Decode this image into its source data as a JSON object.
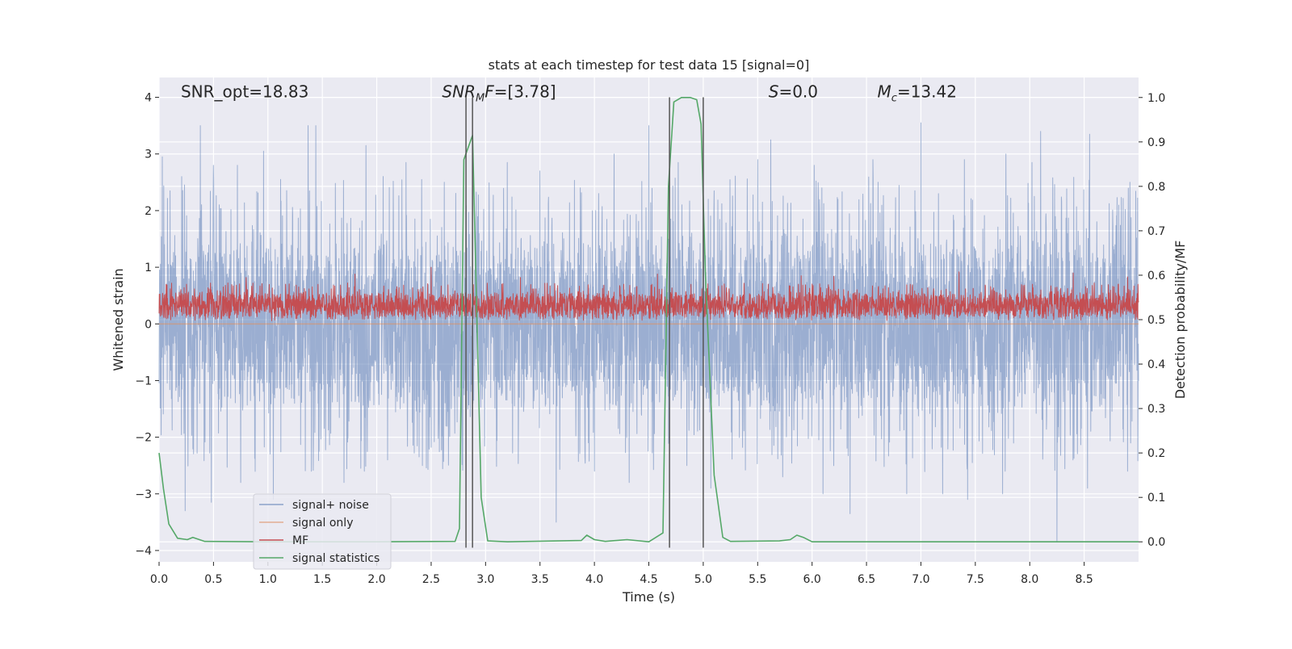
{
  "chart_data": {
    "type": "line",
    "title": "stats at each timestep for test data 15 [signal=0]",
    "xlabel": "Time (s)",
    "ylabel_left": "Whitened strain",
    "ylabel_right": "Detection probability/MF",
    "xlim": [
      0.0,
      9.0
    ],
    "ylim_left": [
      -4.2,
      4.35
    ],
    "ylim_right": [
      -0.045,
      1.045
    ],
    "xticks": [
      0.0,
      0.5,
      1.0,
      1.5,
      2.0,
      2.5,
      3.0,
      3.5,
      4.0,
      4.5,
      5.0,
      5.5,
      6.0,
      6.5,
      7.0,
      7.5,
      8.0,
      8.5
    ],
    "xtick_labels": [
      "0.0",
      "0.5",
      "1.0",
      "1.5",
      "2.0",
      "2.5",
      "3.0",
      "3.5",
      "4.0",
      "4.5",
      "5.0",
      "5.5",
      "6.0",
      "6.5",
      "7.0",
      "7.5",
      "8.0",
      "8.5"
    ],
    "yticks_left": [
      -4,
      -3,
      -2,
      -1,
      0,
      1,
      2,
      3,
      4
    ],
    "ytick_labels_left": [
      "−4",
      "−3",
      "−2",
      "−1",
      "0",
      "1",
      "2",
      "3",
      "4"
    ],
    "yticks_right": [
      0.0,
      0.1,
      0.2,
      0.3,
      0.4,
      0.5,
      0.6,
      0.7,
      0.8,
      0.9,
      1.0
    ],
    "ytick_labels_right": [
      "0.0",
      "0.1",
      "0.2",
      "0.3",
      "0.4",
      "0.5",
      "0.6",
      "0.7",
      "0.8",
      "0.9",
      "1.0"
    ],
    "grid": true,
    "legend_position": "lower-left",
    "annotations": [
      {
        "name": "snr-opt",
        "text": "SNR_opt=18.83",
        "x": 0.2,
        "y": 4.0,
        "html": "SNR_opt=18.83"
      },
      {
        "name": "snr-mf",
        "text": "SNR_MF=[3.78]",
        "x": 2.6,
        "y": 4.0,
        "html": "<tspan font-style='italic'>SNR</tspan><tspan font-style='italic' font-size='13' dy='5'>M</tspan><tspan font-style='italic' dy='-5'>F</tspan>=[3.78]"
      },
      {
        "name": "s-value",
        "text": "S=0.0",
        "x": 5.6,
        "y": 4.0,
        "html": "<tspan font-style='italic'>S</tspan>=0.0"
      },
      {
        "name": "mc-value",
        "text": "M_c=13.42",
        "x": 6.6,
        "y": 4.0,
        "html": "<tspan font-style='italic'>M</tspan><tspan font-style='italic' font-size='13' dy='5'>c</tspan><tspan dy='-5'>=13.42</tspan>"
      }
    ],
    "series": [
      {
        "name": "signal+ noise",
        "axis": "left",
        "color": "#4c72b0",
        "opacity": 0.5,
        "kind": "noise",
        "envelope_points": [
          [
            0.0,
            1.8,
            -1.8
          ],
          [
            9.0,
            1.8,
            -1.8
          ]
        ],
        "peaks": [
          [
            0.03,
            2.95
          ],
          [
            0.38,
            3.5
          ],
          [
            0.5,
            2.8
          ],
          [
            0.72,
            2.8
          ],
          [
            0.96,
            3.05
          ],
          [
            1.37,
            3.5
          ],
          [
            1.44,
            3.5
          ],
          [
            1.7,
            3.0
          ],
          [
            1.9,
            3.15
          ],
          [
            2.27,
            2.85
          ],
          [
            2.62,
            2.5
          ],
          [
            3.2,
            2.85
          ],
          [
            3.5,
            2.7
          ],
          [
            3.87,
            2.4
          ],
          [
            4.18,
            3.0
          ],
          [
            4.5,
            3.5
          ],
          [
            4.77,
            2.85
          ],
          [
            5.1,
            2.35
          ],
          [
            5.5,
            2.9
          ],
          [
            5.62,
            3.25
          ],
          [
            6.02,
            2.8
          ],
          [
            6.56,
            2.9
          ],
          [
            7.0,
            3.55
          ],
          [
            7.4,
            2.9
          ],
          [
            7.78,
            3.0
          ],
          [
            8.02,
            2.85
          ],
          [
            8.1,
            3.4
          ],
          [
            8.55,
            3.35
          ],
          [
            8.92,
            2.5
          ],
          [
            0.24,
            -3.3
          ],
          [
            0.48,
            -3.15
          ],
          [
            0.75,
            -2.8
          ],
          [
            1.05,
            -3.1
          ],
          [
            1.4,
            -2.6
          ],
          [
            1.7,
            -2.8
          ],
          [
            2.1,
            -2.4
          ],
          [
            2.42,
            -2.5
          ],
          [
            2.82,
            -2.95
          ],
          [
            3.65,
            -3.5
          ],
          [
            4.0,
            -2.6
          ],
          [
            4.32,
            -2.8
          ],
          [
            4.85,
            -2.5
          ],
          [
            5.07,
            -2.9
          ],
          [
            5.73,
            -2.7
          ],
          [
            6.1,
            -3.0
          ],
          [
            6.35,
            -3.35
          ],
          [
            6.87,
            -3.0
          ],
          [
            7.2,
            -3.0
          ],
          [
            7.43,
            -3.1
          ],
          [
            7.75,
            -3.0
          ],
          [
            8.25,
            -3.85
          ],
          [
            8.53,
            -2.9
          ],
          [
            8.9,
            -2.6
          ]
        ]
      },
      {
        "name": "signal only",
        "axis": "left",
        "color": "#dd8452",
        "opacity": 0.5,
        "kind": "flat",
        "points": [
          [
            0.0,
            0.0
          ],
          [
            9.0,
            0.0
          ]
        ]
      },
      {
        "name": "MF",
        "axis": "left",
        "color": "#c44e52",
        "opacity": 1.0,
        "kind": "noise",
        "envelope_points": [
          [
            0.0,
            0.6,
            0.05
          ],
          [
            9.0,
            0.6,
            0.05
          ]
        ],
        "peaks": [
          [
            2.5,
            1.0
          ],
          [
            1.8,
            0.88
          ],
          [
            4.58,
            0.88
          ],
          [
            7.35,
            0.92
          ],
          [
            8.4,
            0.9
          ],
          [
            0.8,
            0.82
          ],
          [
            6.2,
            0.84
          ],
          [
            3.32,
            0.82
          ],
          [
            5.9,
            0.85
          ],
          [
            8.9,
            0.83
          ]
        ]
      },
      {
        "name": "signal statistics",
        "axis": "right",
        "color": "#55a868",
        "opacity": 1.0,
        "kind": "line",
        "points": [
          [
            0.0,
            0.2
          ],
          [
            0.04,
            0.12
          ],
          [
            0.09,
            0.04
          ],
          [
            0.17,
            0.008
          ],
          [
            0.26,
            0.005
          ],
          [
            0.31,
            0.01
          ],
          [
            0.42,
            0.001
          ],
          [
            1.0,
            0.0
          ],
          [
            2.0,
            0.0
          ],
          [
            2.72,
            0.001
          ],
          [
            2.76,
            0.03
          ],
          [
            2.8,
            0.86
          ],
          [
            2.88,
            0.915
          ],
          [
            2.96,
            0.1
          ],
          [
            3.02,
            0.002
          ],
          [
            3.2,
            0.0
          ],
          [
            3.88,
            0.003
          ],
          [
            3.93,
            0.015
          ],
          [
            4.0,
            0.005
          ],
          [
            4.1,
            0.001
          ],
          [
            4.3,
            0.005
          ],
          [
            4.5,
            0.0
          ],
          [
            4.63,
            0.02
          ],
          [
            4.68,
            0.8
          ],
          [
            4.73,
            0.99
          ],
          [
            4.8,
            1.0
          ],
          [
            4.88,
            1.0
          ],
          [
            4.94,
            0.995
          ],
          [
            4.98,
            0.94
          ],
          [
            5.02,
            0.6
          ],
          [
            5.1,
            0.15
          ],
          [
            5.18,
            0.01
          ],
          [
            5.25,
            0.001
          ],
          [
            5.7,
            0.002
          ],
          [
            5.8,
            0.005
          ],
          [
            5.86,
            0.015
          ],
          [
            5.92,
            0.01
          ],
          [
            6.0,
            0.0
          ],
          [
            9.0,
            0.0
          ]
        ]
      }
    ],
    "vertical_lines": [
      2.82,
      2.88,
      4.69,
      5.0
    ],
    "vertical_line_range": [
      -3.95,
      4.0
    ],
    "vertical_line_color": "#555555"
  }
}
